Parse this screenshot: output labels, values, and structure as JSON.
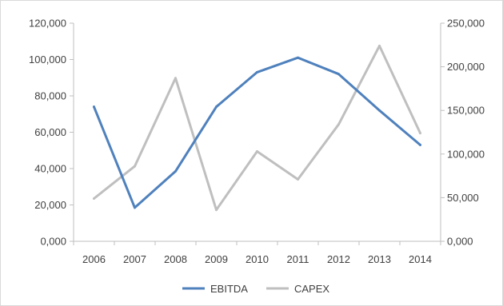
{
  "chart_data": {
    "type": "line",
    "categories": [
      "2006",
      "2007",
      "2008",
      "2009",
      "2010",
      "2011",
      "2012",
      "2013",
      "2014"
    ],
    "series": [
      {
        "name": "EBITDA",
        "axis": "left",
        "color": "#4f81bd",
        "values": [
          74000,
          18500,
          38500,
          74000,
          93000,
          101000,
          92000,
          72000,
          53000
        ]
      },
      {
        "name": "CAPEX",
        "axis": "right",
        "color": "#bfbfbf",
        "values": [
          49000,
          86000,
          187000,
          36000,
          103000,
          71000,
          134000,
          224000,
          124000
        ]
      }
    ],
    "y_left": {
      "ylim": [
        0,
        120000
      ],
      "ticks": [
        "0,000",
        "20,000",
        "40,000",
        "60,000",
        "80,000",
        "100,000",
        "120,000"
      ]
    },
    "y_right": {
      "ylim": [
        0,
        250000
      ],
      "ticks": [
        "0,000",
        "50,000",
        "100,000",
        "150,000",
        "200,000",
        "250,000"
      ]
    },
    "grid": false,
    "legend_position": "bottom",
    "title": "",
    "xlabel": "",
    "ylabel": ""
  }
}
